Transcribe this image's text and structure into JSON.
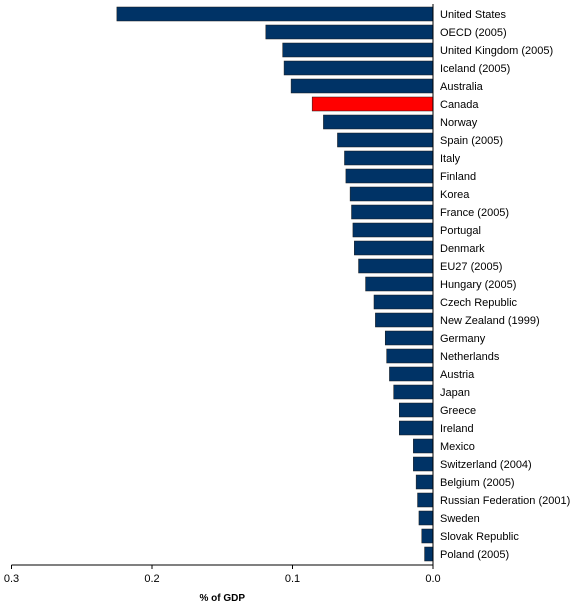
{
  "chart_data": {
    "type": "bar",
    "orientation": "horizontal",
    "title": "",
    "xlabel": "% of GDP",
    "ylabel": "",
    "xlim": [
      0,
      0.3
    ],
    "x_direction": "reversed",
    "xticks": [
      0.3,
      0.2,
      0.1,
      0.0
    ],
    "xtick_labels": [
      "0.3",
      "0.2",
      "0.1",
      "0.0"
    ],
    "grid": false,
    "legend": "none",
    "colors": {
      "bar": "#003366",
      "highlight": "#ff0000",
      "axis": "#000000"
    },
    "highlight_category": "Canada",
    "categories": [
      "United States",
      "OECD (2005)",
      "United Kingdom (2005)",
      "Iceland (2005)",
      "Australia",
      "Canada",
      "Norway",
      "Spain (2005)",
      "Italy",
      "Finland",
      "Korea",
      "France (2005)",
      "Portugal",
      "Denmark",
      "EU27 (2005)",
      "Hungary (2005)",
      "Czech Republic",
      "New Zealand (1999)",
      "Germany",
      "Netherlands",
      "Austria",
      "Japan",
      "Greece",
      "Ireland",
      "Mexico",
      "Switzerland (2004)",
      "Belgium (2005)",
      "Russian Federation (2001)",
      "Sweden",
      "Slovak Republic",
      "Poland (2005)"
    ],
    "values": [
      0.225,
      0.119,
      0.107,
      0.106,
      0.101,
      0.086,
      0.078,
      0.068,
      0.063,
      0.062,
      0.059,
      0.058,
      0.057,
      0.056,
      0.053,
      0.048,
      0.042,
      0.041,
      0.034,
      0.033,
      0.031,
      0.028,
      0.024,
      0.024,
      0.014,
      0.014,
      0.012,
      0.011,
      0.01,
      0.008,
      0.006
    ]
  }
}
